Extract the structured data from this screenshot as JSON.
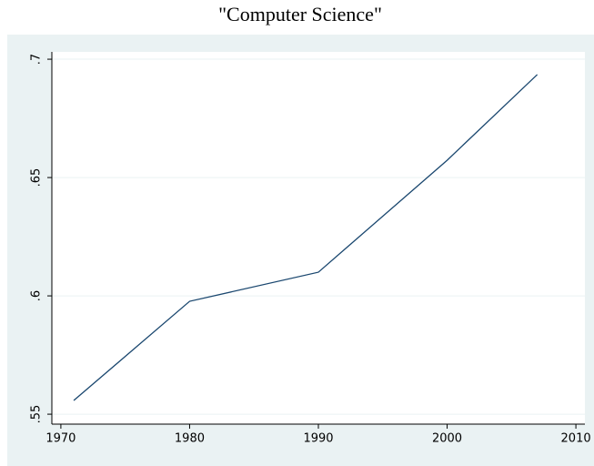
{
  "chart_data": {
    "type": "line",
    "title": "\"Computer Science\"",
    "x": [
      1971,
      1980,
      1990,
      2000,
      2007
    ],
    "series": [
      {
        "name": "Computer Science",
        "color": "#1a476f",
        "values": [
          0.5558,
          0.5977,
          0.61,
          0.6573,
          0.6935
        ]
      }
    ],
    "xlim": [
      1969.3,
      2010.7
    ],
    "xticks": [
      1970,
      1980,
      1990,
      2000,
      2010
    ],
    "ylim": [
      0.5458,
      0.7031
    ],
    "yticks": [
      {
        "value": 0.55,
        "label": ".55"
      },
      {
        "value": 0.6,
        "label": ".6"
      },
      {
        "value": 0.65,
        "label": ".65"
      },
      {
        "value": 0.7,
        "label": ".7"
      }
    ],
    "grid": true
  }
}
